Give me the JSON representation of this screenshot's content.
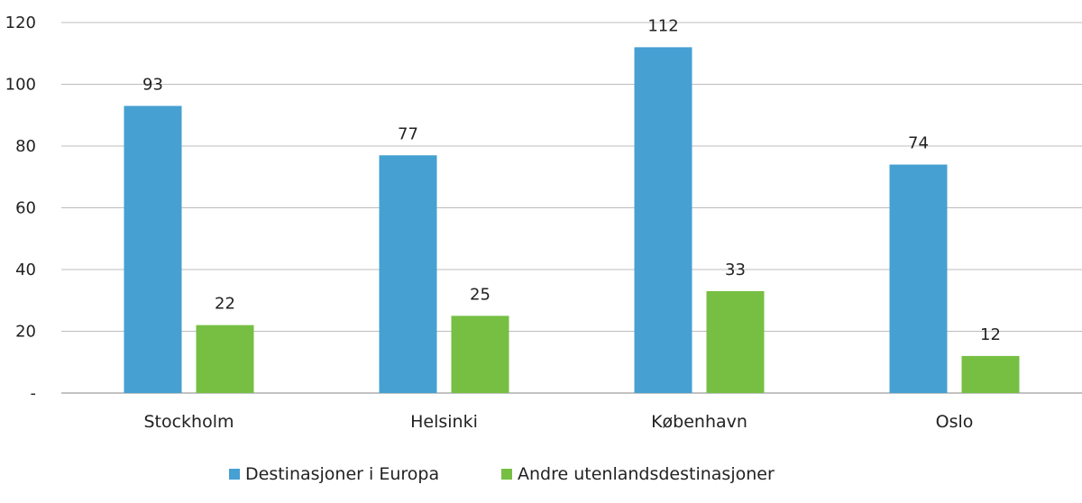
{
  "chart_data": {
    "type": "bar",
    "categories": [
      "Stockholm",
      "Helsinki",
      "København",
      "Oslo"
    ],
    "series": [
      {
        "name": "Destinasjoner i Europa",
        "values": [
          93,
          77,
          112,
          74
        ],
        "color": "#46a0d2"
      },
      {
        "name": "Andre utenlandsdestinasjoner",
        "values": [
          22,
          25,
          33,
          12
        ],
        "color": "#76bf43"
      }
    ],
    "title": "",
    "xlabel": "",
    "ylabel": "",
    "ylim": [
      0,
      120
    ],
    "yticks": [
      0,
      20,
      40,
      60,
      80,
      100,
      120
    ],
    "ytick_labels": [
      "-",
      "20",
      "40",
      "60",
      "80",
      "100",
      "120"
    ],
    "grid": true,
    "legend": "bottom-center"
  }
}
